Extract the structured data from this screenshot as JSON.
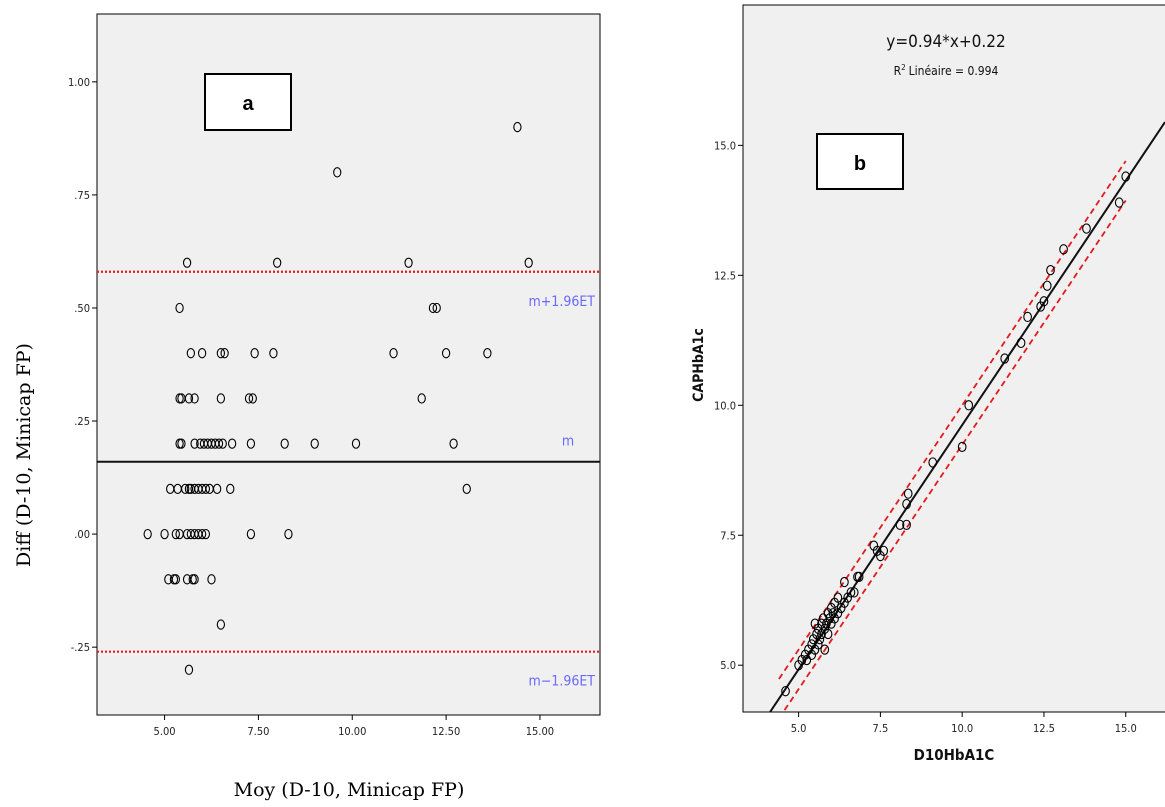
{
  "chart_data": [
    {
      "panel_label": "a",
      "type": "scatter",
      "xlabel": "Moy (D-10, Minicap FP)",
      "ylabel": "Diff (D-10, Minicap FP)",
      "xlim": [
        3.2,
        16.6
      ],
      "ylim": [
        -0.4,
        1.15
      ],
      "x_ticks": [
        "5.00",
        "7.50",
        "10.00",
        "12.50",
        "15.00"
      ],
      "y_ticks": [
        {
          "v": 1.0,
          "label": "1.00"
        },
        {
          "v": 0.75,
          "label": ".75"
        },
        {
          "v": 0.5,
          "label": ".50"
        },
        {
          "v": 0.25,
          "label": ".25"
        },
        {
          "v": 0.0,
          "label": ".00"
        },
        {
          "v": -0.25,
          "label": "-.25"
        }
      ],
      "lines": [
        {
          "y": 0.58,
          "label": "m+1.96ET",
          "color": "#e31a1c",
          "style": "dotted"
        },
        {
          "y": 0.16,
          "label": "m",
          "color": "#111111",
          "style": "solid"
        },
        {
          "y": -0.26,
          "label": "m−1.96ET",
          "color": "#e31a1c",
          "style": "dotted"
        }
      ],
      "points": [
        [
          14.4,
          0.9
        ],
        [
          9.6,
          0.8
        ],
        [
          5.6,
          0.6
        ],
        [
          8.0,
          0.6
        ],
        [
          11.5,
          0.6
        ],
        [
          14.7,
          0.6
        ],
        [
          5.4,
          0.5
        ],
        [
          12.15,
          0.5
        ],
        [
          12.25,
          0.5
        ],
        [
          5.7,
          0.4
        ],
        [
          6.0,
          0.4
        ],
        [
          6.5,
          0.4
        ],
        [
          6.6,
          0.4
        ],
        [
          7.4,
          0.4
        ],
        [
          7.9,
          0.4
        ],
        [
          11.1,
          0.4
        ],
        [
          12.5,
          0.4
        ],
        [
          13.6,
          0.4
        ],
        [
          5.4,
          0.3
        ],
        [
          5.45,
          0.3
        ],
        [
          5.65,
          0.3
        ],
        [
          5.8,
          0.3
        ],
        [
          6.5,
          0.3
        ],
        [
          7.25,
          0.3
        ],
        [
          7.35,
          0.3
        ],
        [
          11.85,
          0.3
        ],
        [
          5.4,
          0.2
        ],
        [
          5.45,
          0.2
        ],
        [
          5.8,
          0.2
        ],
        [
          5.95,
          0.2
        ],
        [
          6.05,
          0.2
        ],
        [
          6.15,
          0.2
        ],
        [
          6.25,
          0.2
        ],
        [
          6.35,
          0.2
        ],
        [
          6.45,
          0.2
        ],
        [
          6.55,
          0.2
        ],
        [
          6.8,
          0.2
        ],
        [
          7.3,
          0.2
        ],
        [
          8.2,
          0.2
        ],
        [
          9.0,
          0.2
        ],
        [
          10.1,
          0.2
        ],
        [
          12.7,
          0.2
        ],
        [
          5.15,
          0.1
        ],
        [
          5.35,
          0.1
        ],
        [
          5.55,
          0.1
        ],
        [
          5.65,
          0.1
        ],
        [
          5.7,
          0.1
        ],
        [
          5.8,
          0.1
        ],
        [
          5.9,
          0.1
        ],
        [
          6.0,
          0.1
        ],
        [
          6.1,
          0.1
        ],
        [
          6.2,
          0.1
        ],
        [
          6.4,
          0.1
        ],
        [
          6.75,
          0.1
        ],
        [
          13.05,
          0.1
        ],
        [
          4.55,
          0.0
        ],
        [
          5.0,
          0.0
        ],
        [
          5.3,
          0.0
        ],
        [
          5.4,
          0.0
        ],
        [
          5.6,
          0.0
        ],
        [
          5.7,
          0.0
        ],
        [
          5.8,
          0.0
        ],
        [
          5.9,
          0.0
        ],
        [
          6.0,
          0.0
        ],
        [
          6.1,
          0.0
        ],
        [
          7.3,
          0.0
        ],
        [
          8.3,
          0.0
        ],
        [
          5.1,
          -0.1
        ],
        [
          5.25,
          -0.1
        ],
        [
          5.3,
          -0.1
        ],
        [
          5.6,
          -0.1
        ],
        [
          5.75,
          -0.1
        ],
        [
          5.8,
          -0.1
        ],
        [
          6.25,
          -0.1
        ],
        [
          6.5,
          -0.2
        ],
        [
          5.65,
          -0.3
        ]
      ]
    },
    {
      "panel_label": "b",
      "type": "scatter",
      "xlabel": "D10HbA1C",
      "ylabel": "CAPHbA1c",
      "equation": "y=0.94*x+0.22",
      "r2_label": "Linéaire = 0.994",
      "r2_prefix": "R",
      "r2_sup": "2",
      "xlim": [
        3.3,
        16.2
      ],
      "ylim": [
        4.1,
        17.7
      ],
      "x_ticks": [
        5,
        7.5,
        10,
        12.5,
        15
      ],
      "x_tick_labels": [
        "5.0",
        "7.5",
        "10.0",
        "12.5",
        "15.0"
      ],
      "y_ticks": [
        5,
        7.5,
        10,
        12.5,
        15
      ],
      "y_tick_labels": [
        "5.0",
        "7.5",
        "10.0",
        "12.5",
        "15.0"
      ],
      "fit": {
        "slope": 0.94,
        "intercept": 0.22,
        "color": "#111111"
      },
      "ci_offset": 0.38,
      "ci_color": "#e31a1c",
      "points": [
        [
          4.6,
          4.5
        ],
        [
          5.0,
          5.0
        ],
        [
          5.1,
          5.1
        ],
        [
          5.2,
          5.2
        ],
        [
          5.25,
          5.1
        ],
        [
          5.3,
          5.3
        ],
        [
          5.4,
          5.2
        ],
        [
          5.4,
          5.4
        ],
        [
          5.45,
          5.5
        ],
        [
          5.5,
          5.3
        ],
        [
          5.5,
          5.8
        ],
        [
          5.55,
          5.6
        ],
        [
          5.6,
          5.4
        ],
        [
          5.6,
          5.7
        ],
        [
          5.65,
          5.5
        ],
        [
          5.7,
          5.8
        ],
        [
          5.7,
          5.6
        ],
        [
          5.75,
          5.9
        ],
        [
          5.8,
          5.3
        ],
        [
          5.8,
          5.7
        ],
        [
          5.85,
          5.8
        ],
        [
          5.9,
          6.0
        ],
        [
          5.9,
          5.6
        ],
        [
          5.95,
          5.9
        ],
        [
          6.0,
          6.1
        ],
        [
          6.0,
          5.8
        ],
        [
          6.05,
          6.0
        ],
        [
          6.1,
          6.2
        ],
        [
          6.1,
          5.9
        ],
        [
          6.2,
          6.3
        ],
        [
          6.2,
          6.0
        ],
        [
          6.3,
          6.1
        ],
        [
          6.4,
          6.6
        ],
        [
          6.4,
          6.2
        ],
        [
          6.5,
          6.3
        ],
        [
          6.6,
          6.4
        ],
        [
          6.7,
          6.4
        ],
        [
          6.8,
          6.7
        ],
        [
          6.85,
          6.7
        ],
        [
          7.3,
          7.3
        ],
        [
          7.4,
          7.2
        ],
        [
          7.5,
          7.1
        ],
        [
          7.6,
          7.2
        ],
        [
          8.1,
          7.7
        ],
        [
          8.3,
          7.7
        ],
        [
          8.3,
          8.1
        ],
        [
          8.35,
          8.3
        ],
        [
          9.1,
          8.9
        ],
        [
          10.0,
          9.2
        ],
        [
          10.2,
          10.0
        ],
        [
          11.3,
          10.9
        ],
        [
          11.8,
          11.2
        ],
        [
          12.0,
          11.7
        ],
        [
          12.4,
          11.9
        ],
        [
          12.5,
          12.0
        ],
        [
          12.6,
          12.3
        ],
        [
          12.7,
          12.6
        ],
        [
          13.1,
          13.0
        ],
        [
          13.8,
          13.4
        ],
        [
          14.8,
          13.9
        ],
        [
          15.0,
          14.4
        ]
      ]
    }
  ]
}
